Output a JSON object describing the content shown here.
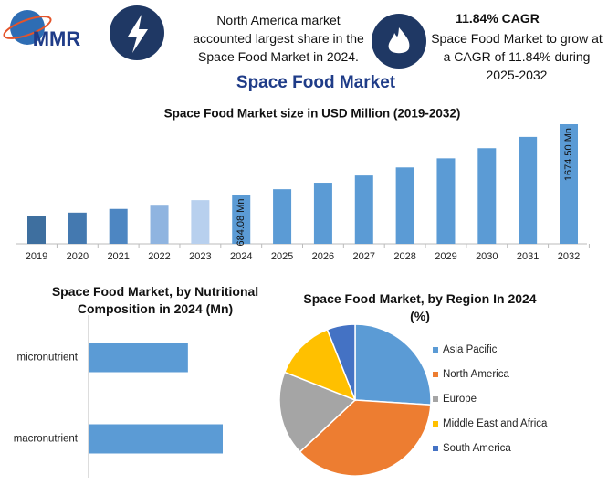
{
  "header": {
    "logo": "MMR",
    "highlight_1": "North America market accounted largest share in the Space Food Market in 2024.",
    "highlight_2_title": "11.84% CAGR",
    "highlight_2": "Space Food Market to grow at a CAGR of 11.84% during 2025-2032",
    "title": "Space Food Market"
  },
  "chart_data": [
    {
      "type": "bar",
      "title": "Space Food Market size in USD Million (2019-2032)",
      "categories": [
        "2019",
        "2020",
        "2021",
        "2022",
        "2023",
        "2024",
        "2025",
        "2026",
        "2027",
        "2028",
        "2029",
        "2030",
        "2031",
        "2032"
      ],
      "values": [
        391,
        437,
        489,
        547,
        612,
        684.08,
        765,
        856,
        957,
        1070,
        1197,
        1339,
        1497,
        1674.5
      ],
      "value_labels": [
        null,
        null,
        null,
        null,
        null,
        "684.08 Mn",
        null,
        null,
        null,
        null,
        null,
        null,
        null,
        "1674.50 Mn"
      ],
      "colors": [
        "#3e6f9f",
        "#4479b0",
        "#4d86c2",
        "#8fb4e0",
        "#b8d0ee",
        "#5b9bd5",
        "#5b9bd5",
        "#5b9bd5",
        "#5b9bd5",
        "#5b9bd5",
        "#5b9bd5",
        "#5b9bd5",
        "#5b9bd5",
        "#5b9bd5"
      ]
    },
    {
      "type": "hbar",
      "title": "Space Food Market, by Nutritional Composition in 2024 (Mn)",
      "categories": [
        "micronutrient",
        "macronutrient"
      ],
      "values": [
        291,
        393
      ],
      "color": "#5b9bd5"
    },
    {
      "type": "pie",
      "title": "Space Food Market, by Region In 2024 (%)",
      "categories": [
        "Asia Pacific",
        "North America",
        "Europe",
        "Middle East and Africa",
        "South America"
      ],
      "values": [
        26,
        37,
        18,
        13,
        6
      ],
      "colors": [
        "#5b9bd5",
        "#ed7d31",
        "#a5a5a5",
        "#ffc000",
        "#4472c4"
      ],
      "legend": "right"
    }
  ]
}
